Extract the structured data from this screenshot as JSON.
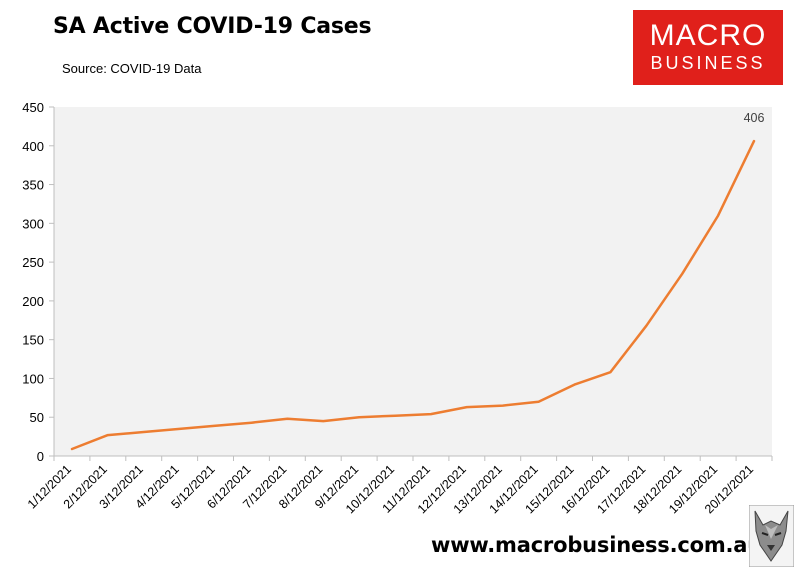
{
  "header": {
    "title": "SA Active COVID-19 Cases",
    "source": "Source: COVID-19 Data"
  },
  "logo": {
    "line1": "MACRO",
    "line2": "BUSINESS"
  },
  "footer": {
    "url": "www.macrobusiness.com.au"
  },
  "colors": {
    "line": "#ed7d31",
    "plot_bg": "#f2f2f2",
    "logo_bg": "#e0201b"
  },
  "chart_data": {
    "type": "line",
    "title": "SA Active COVID-19 Cases",
    "xlabel": "",
    "ylabel": "",
    "ylim": [
      0,
      450
    ],
    "yticks": [
      0,
      50,
      100,
      150,
      200,
      250,
      300,
      350,
      400,
      450
    ],
    "categories": [
      "1/12/2021",
      "2/12/2021",
      "3/12/2021",
      "4/12/2021",
      "5/12/2021",
      "6/12/2021",
      "7/12/2021",
      "8/12/2021",
      "9/12/2021",
      "10/12/2021",
      "11/12/2021",
      "12/12/2021",
      "13/12/2021",
      "14/12/2021",
      "15/12/2021",
      "16/12/2021",
      "17/12/2021",
      "18/12/2021",
      "19/12/2021",
      "20/12/2021"
    ],
    "series": [
      {
        "name": "SA Active COVID-19 Cases",
        "values": [
          9,
          27,
          31,
          35,
          39,
          43,
          48,
          45,
          50,
          52,
          54,
          63,
          65,
          70,
          92,
          108,
          168,
          235,
          310,
          406
        ]
      }
    ],
    "annotations": [
      {
        "index": 19,
        "text": "406"
      }
    ]
  }
}
